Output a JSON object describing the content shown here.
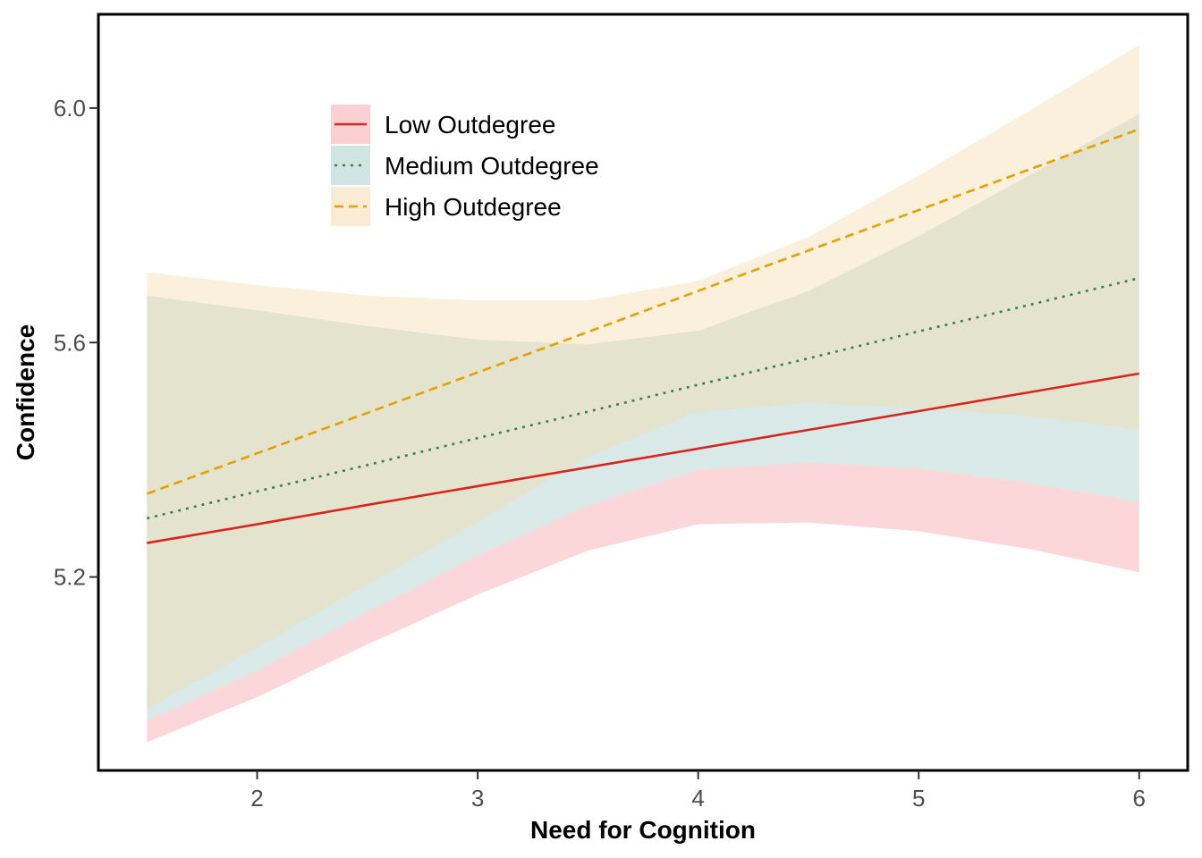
{
  "chart_data": {
    "type": "line",
    "xlabel": "Need for Cognition",
    "ylabel": "Confidence",
    "xlim": [
      1.28,
      6.22
    ],
    "ylim": [
      4.87,
      6.16
    ],
    "x_ticks": [
      2,
      3,
      4,
      5,
      6
    ],
    "x_tick_labels": [
      "2",
      "3",
      "4",
      "5",
      "6"
    ],
    "y_ticks": [
      5.2,
      5.6,
      6.0
    ],
    "y_tick_labels": [
      "5.2",
      "5.6",
      "6.0"
    ],
    "grid": false,
    "legend_position": "top-left",
    "x": [
      1.5,
      2,
      2.5,
      3,
      3.5,
      4,
      4.5,
      5,
      5.5,
      6
    ],
    "series": [
      {
        "name": "Low Outdegree",
        "line_style": "solid",
        "line_color": "#d7261e",
        "band_color": "#f9a7aa",
        "values": [
          5.258,
          5.29,
          5.323,
          5.355,
          5.387,
          5.419,
          5.451,
          5.483,
          5.515,
          5.547
        ],
        "lower": [
          4.918,
          4.995,
          5.085,
          5.17,
          5.245,
          5.29,
          5.293,
          5.278,
          5.248,
          5.208
        ],
        "upper": [
          4.955,
          5.04,
          5.14,
          5.237,
          5.322,
          5.383,
          5.395,
          5.385,
          5.36,
          5.328
        ]
      },
      {
        "name": "Medium Outdegree",
        "line_style": "dotted",
        "line_color": "#3b7f4a",
        "band_color": "#a8cfcb",
        "values": [
          5.3,
          5.346,
          5.391,
          5.437,
          5.482,
          5.528,
          5.573,
          5.619,
          5.664,
          5.71
        ],
        "lower": [
          4.955,
          5.04,
          5.14,
          5.237,
          5.322,
          5.383,
          5.395,
          5.385,
          5.36,
          5.328
        ],
        "upper": [
          5.68,
          5.655,
          5.628,
          5.605,
          5.597,
          5.62,
          5.688,
          5.782,
          5.885,
          5.99
        ]
      },
      {
        "name": "High Outdegree",
        "line_style": "dashed",
        "line_color": "#e69f00",
        "band_color": "#f5ddb0",
        "values": [
          5.342,
          5.411,
          5.48,
          5.549,
          5.618,
          5.688,
          5.757,
          5.826,
          5.895,
          5.964
        ],
        "lower": [
          4.975,
          5.08,
          5.187,
          5.294,
          5.405,
          5.482,
          5.497,
          5.488,
          5.474,
          5.452
        ],
        "upper": [
          5.72,
          5.698,
          5.68,
          5.672,
          5.672,
          5.705,
          5.78,
          5.885,
          5.995,
          6.108
        ]
      }
    ]
  }
}
